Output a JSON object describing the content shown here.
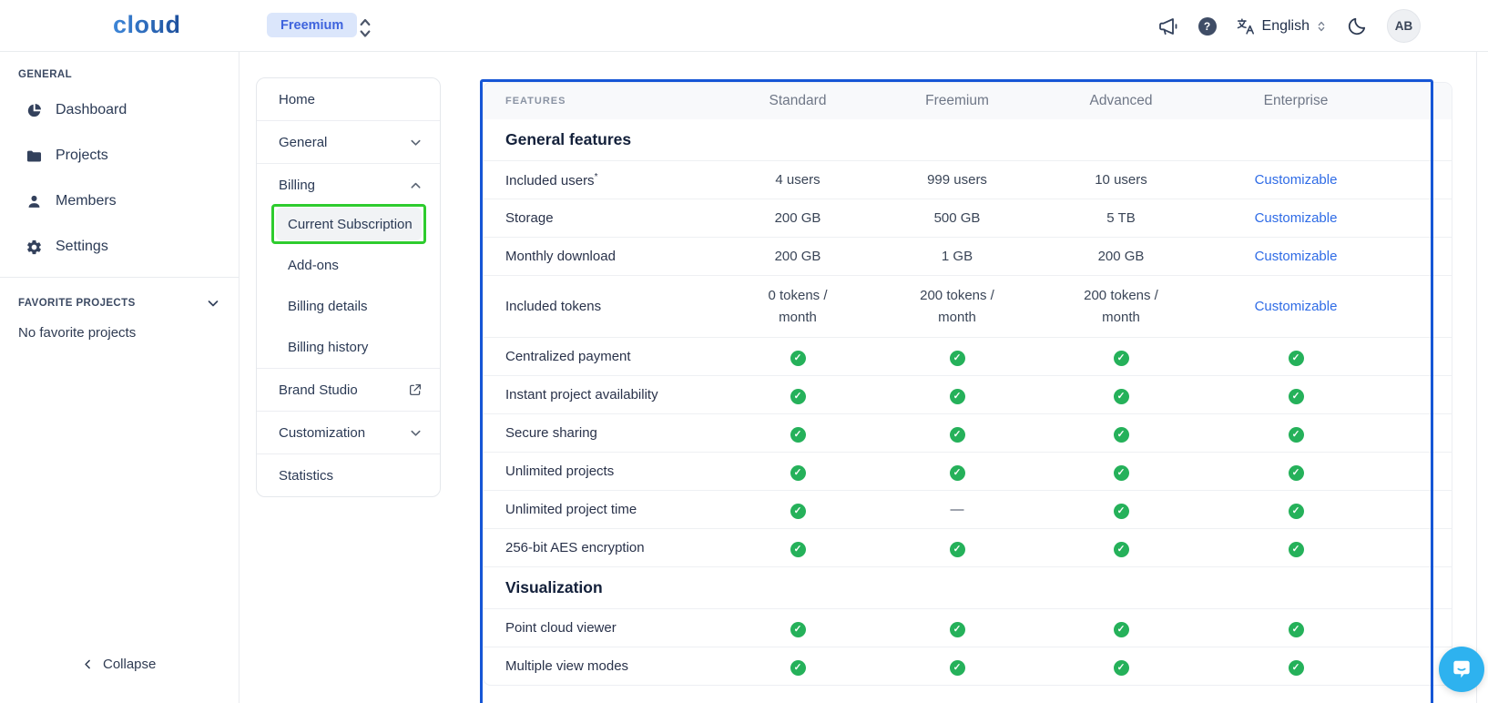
{
  "colors": {
    "annotation_blue": "#1656d6",
    "annotation_green": "#2ecc2e",
    "check_green": "#25b15a",
    "link_blue": "#2e6be6",
    "chat_blue": "#2eb2ef"
  },
  "topbar": {
    "logo": "cloud",
    "plan_badge": "Freemium",
    "language": "English",
    "avatar": "AB"
  },
  "sidebar": {
    "general_header": "GENERAL",
    "items": [
      {
        "icon": "pie",
        "label": "Dashboard"
      },
      {
        "icon": "folder",
        "label": "Projects"
      },
      {
        "icon": "person",
        "label": "Members"
      },
      {
        "icon": "gear",
        "label": "Settings"
      }
    ],
    "favorites_header": "FAVORITE PROJECTS",
    "favorites_empty": "No favorite projects",
    "collapse_label": "Collapse"
  },
  "nav": {
    "groups": [
      {
        "items": [
          {
            "label": "Home"
          }
        ]
      },
      {
        "items": [
          {
            "label": "General",
            "chevron": "down"
          }
        ]
      },
      {
        "items": [
          {
            "label": "Billing",
            "chevron": "up"
          },
          {
            "label": "Current Subscription",
            "sub": true,
            "selected": true,
            "annotated": true
          },
          {
            "label": "Add-ons",
            "sub": true
          },
          {
            "label": "Billing details",
            "sub": true
          },
          {
            "label": "Billing history",
            "sub": true
          }
        ]
      },
      {
        "items": [
          {
            "label": "Brand Studio",
            "external": true
          }
        ]
      },
      {
        "items": [
          {
            "label": "Customization",
            "chevron": "down"
          }
        ]
      },
      {
        "items": [
          {
            "label": "Statistics"
          }
        ]
      }
    ]
  },
  "table": {
    "features_header": "FEATURES",
    "plans": [
      "Standard",
      "Freemium",
      "Advanced",
      "Enterprise"
    ],
    "sections": [
      {
        "title": "General features",
        "rows": [
          {
            "feature": "Included users",
            "asterisk": "*",
            "cells": [
              {
                "t": "text",
                "v": "4 users"
              },
              {
                "t": "text",
                "v": "999 users"
              },
              {
                "t": "text",
                "v": "10 users"
              },
              {
                "t": "link",
                "v": "Customizable"
              }
            ]
          },
          {
            "feature": "Storage",
            "cells": [
              {
                "t": "text",
                "v": "200 GB"
              },
              {
                "t": "text",
                "v": "500 GB"
              },
              {
                "t": "text",
                "v": "5 TB"
              },
              {
                "t": "link",
                "v": "Customizable"
              }
            ]
          },
          {
            "feature": "Monthly download",
            "cells": [
              {
                "t": "text",
                "v": "200 GB"
              },
              {
                "t": "text",
                "v": "1 GB"
              },
              {
                "t": "text",
                "v": "200 GB"
              },
              {
                "t": "link",
                "v": "Customizable"
              }
            ]
          },
          {
            "feature": "Included tokens",
            "tall": true,
            "cells": [
              {
                "t": "text",
                "v": "0 tokens /\nmonth"
              },
              {
                "t": "text",
                "v": "200 tokens /\nmonth"
              },
              {
                "t": "text",
                "v": "200 tokens /\nmonth"
              },
              {
                "t": "link",
                "v": "Customizable"
              }
            ]
          },
          {
            "feature": "Centralized payment",
            "cells": [
              {
                "t": "check"
              },
              {
                "t": "check"
              },
              {
                "t": "check"
              },
              {
                "t": "check"
              }
            ]
          },
          {
            "feature": "Instant project availability",
            "cells": [
              {
                "t": "check"
              },
              {
                "t": "check"
              },
              {
                "t": "check"
              },
              {
                "t": "check"
              }
            ]
          },
          {
            "feature": "Secure sharing",
            "cells": [
              {
                "t": "check"
              },
              {
                "t": "check"
              },
              {
                "t": "check"
              },
              {
                "t": "check"
              }
            ]
          },
          {
            "feature": "Unlimited projects",
            "cells": [
              {
                "t": "check"
              },
              {
                "t": "check"
              },
              {
                "t": "check"
              },
              {
                "t": "check"
              }
            ]
          },
          {
            "feature": "Unlimited project time",
            "cells": [
              {
                "t": "check"
              },
              {
                "t": "dash",
                "v": "—"
              },
              {
                "t": "check"
              },
              {
                "t": "check"
              }
            ]
          },
          {
            "feature": "256-bit AES encryption",
            "cells": [
              {
                "t": "check"
              },
              {
                "t": "check"
              },
              {
                "t": "check"
              },
              {
                "t": "check"
              }
            ]
          }
        ]
      },
      {
        "title": "Visualization",
        "rows": [
          {
            "feature": "Point cloud viewer",
            "cells": [
              {
                "t": "check"
              },
              {
                "t": "check"
              },
              {
                "t": "check"
              },
              {
                "t": "check"
              }
            ]
          },
          {
            "feature": "Multiple view modes",
            "cells": [
              {
                "t": "check"
              },
              {
                "t": "check"
              },
              {
                "t": "check"
              },
              {
                "t": "check"
              }
            ]
          }
        ]
      }
    ]
  }
}
